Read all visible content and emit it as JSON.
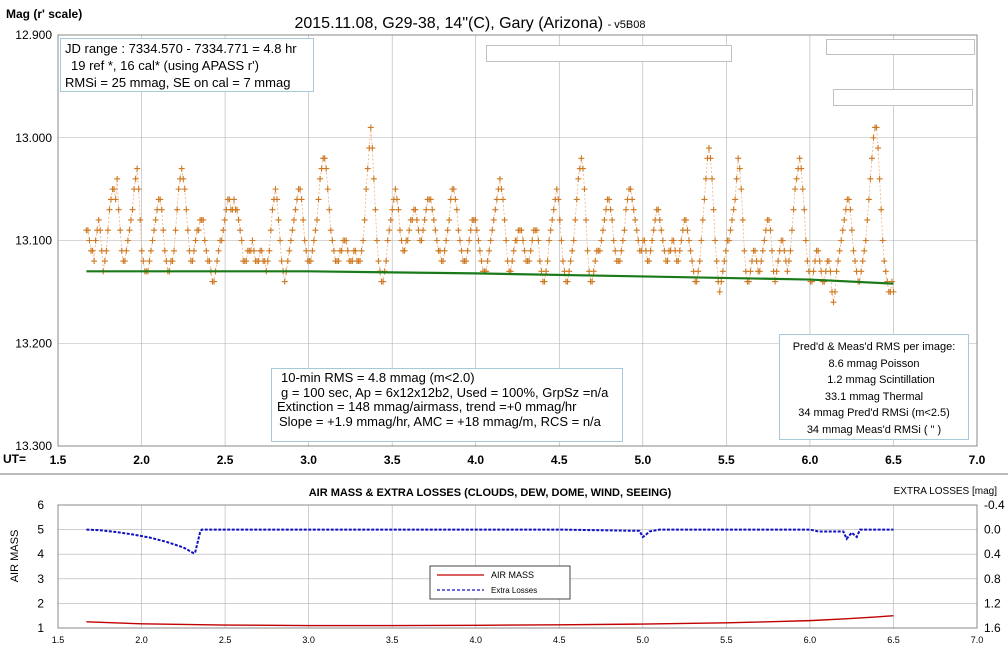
{
  "top_chart": {
    "title_main": "2015.11.08, G29-38, 14\"(C), Gary (Arizona)",
    "title_suffix": "- v5B08",
    "ylabel": "Mag (r' scale)",
    "xlabel": "UT=",
    "ytick_labels": [
      "12.900",
      "13.000",
      "13.100",
      "13.200",
      "13.300"
    ],
    "xtick_labels": [
      "1.5",
      "2.0",
      "2.5",
      "3.0",
      "3.5",
      "4.0",
      "4.5",
      "5.0",
      "5.5",
      "6.0",
      "6.5",
      "7.0"
    ],
    "info_box": {
      "line1": "JD range : 7334.570 - 7334.771 = 4.8 hr",
      "line2": "19 ref *, 16 cal* (using APASS r')",
      "line3": "RMSi = 25 mmag, SE on cal = 7 mmag"
    },
    "stats_box": {
      "line1": "10-min RMS = 4.8 mmag (m<2.0)",
      "line2": "g = 100 sec, Ap = 6x12x12b2, Used = 100%, GrpSz =n/a",
      "line3": "Extinction = 148 mmag/airmass, trend =+0 mmag/hr",
      "line4": "Slope = +1.9 mmag/hr, AMC = +18 mmag/m, RCS = n/a"
    },
    "rms_box": {
      "title": "Pred'd & Meas'd RMS per image:",
      "line1": "8.6 mmag Poisson",
      "line2": "1.2 mmag Scintillation",
      "line3": "33.1 mmag Thermal",
      "line4": "34 mmag Pred'd  RMSi (m<2.5)",
      "line5": "34 mmag Meas'd RMSi (     \"     )"
    }
  },
  "bottom_chart": {
    "title": "AIR MASS & EXTRA LOSSES (CLOUDS, DEW, DOME, WIND, SEEING)",
    "ylabel_left": "AIR MASS",
    "ylabel_right": "EXTRA LOSSES [mag]",
    "left_tick_labels": [
      "1",
      "2",
      "3",
      "4",
      "5",
      "6"
    ],
    "right_tick_labels": [
      "1.6",
      "1.2",
      "0.8",
      "0.4",
      "0.0",
      "-0.4"
    ],
    "xtick_labels": [
      "1.5",
      "2.0",
      "2.5",
      "3.0",
      "3.5",
      "4.0",
      "4.5",
      "5.0",
      "5.5",
      "6.0",
      "6.5",
      "7.0"
    ],
    "legend": {
      "airmass": "AIR MASS",
      "losses": "Extra Losses"
    }
  },
  "colors": {
    "data_points": "#d07820",
    "trend": "#1a7a1a",
    "airmass": "#c00000",
    "losses": "#1010c0",
    "grid": "#b0b0b0"
  },
  "chart_data": [
    {
      "type": "scatter",
      "title": "2015.11.08, G29-38, 14\"(C), Gary (Arizona) - v5B08",
      "xlabel": "UT=",
      "ylabel": "Mag (r' scale)",
      "xlim": [
        1.5,
        7.0
      ],
      "ylim": [
        13.3,
        12.9
      ],
      "y_inverted": true,
      "grid": true,
      "x_start": 1.67,
      "x_end": 6.5,
      "magnitudes": [
        13.09,
        13.09,
        13.1,
        13.11,
        13.11,
        13.12,
        13.1,
        13.09,
        13.08,
        13.09,
        13.11,
        13.13,
        13.12,
        13.11,
        13.09,
        13.07,
        13.06,
        13.05,
        13.05,
        13.06,
        13.04,
        13.07,
        13.09,
        13.11,
        13.12,
        13.12,
        13.11,
        13.1,
        13.09,
        13.08,
        13.07,
        13.05,
        13.04,
        13.03,
        13.05,
        13.08,
        13.11,
        13.12,
        13.13,
        13.13,
        13.13,
        13.12,
        13.11,
        13.1,
        13.09,
        13.08,
        13.07,
        13.06,
        13.06,
        13.07,
        13.09,
        13.11,
        13.12,
        13.13,
        13.13,
        13.12,
        13.12,
        13.11,
        13.09,
        13.07,
        13.05,
        13.04,
        13.03,
        13.04,
        13.05,
        13.07,
        13.09,
        13.11,
        13.12,
        13.12,
        13.11,
        13.1,
        13.09,
        13.09,
        13.08,
        13.08,
        13.08,
        13.1,
        13.11,
        13.12,
        13.12,
        13.13,
        13.14,
        13.14,
        13.13,
        13.12,
        13.11,
        13.1,
        13.1,
        13.09,
        13.08,
        13.07,
        13.06,
        13.06,
        13.07,
        13.07,
        13.06,
        13.07,
        13.07,
        13.08,
        13.09,
        13.1,
        13.12,
        13.12,
        13.12,
        13.11,
        13.11,
        13.11,
        13.1,
        13.11,
        13.12,
        13.12,
        13.12,
        13.11,
        13.11,
        13.12,
        13.12,
        13.13,
        13.12,
        13.11,
        13.09,
        13.07,
        13.06,
        13.05,
        13.06,
        13.08,
        13.1,
        13.12,
        13.13,
        13.14,
        13.13,
        13.12,
        13.11,
        13.1,
        13.09,
        13.08,
        13.07,
        13.06,
        13.05,
        13.05,
        13.06,
        13.08,
        13.1,
        13.11,
        13.12,
        13.12,
        13.12,
        13.11,
        13.1,
        13.09,
        13.08,
        13.06,
        13.04,
        13.03,
        13.02,
        13.02,
        13.03,
        13.05,
        13.07,
        13.09,
        13.1,
        13.11,
        13.12,
        13.12,
        13.12,
        13.11,
        13.11,
        13.1,
        13.1,
        13.1,
        13.11,
        13.12,
        13.12,
        13.12,
        13.11,
        13.11,
        13.12,
        13.12,
        13.12,
        13.11,
        13.1,
        13.08,
        13.05,
        13.03,
        13.01,
        12.99,
        13.01,
        13.04,
        13.07,
        13.1,
        13.12,
        13.13,
        13.14,
        13.14,
        13.13,
        13.12,
        13.1,
        13.09,
        13.08,
        13.07,
        13.06,
        13.05,
        13.06,
        13.07,
        13.09,
        13.1,
        13.11,
        13.11,
        13.1,
        13.1,
        13.09,
        13.08,
        13.08,
        13.07,
        13.07,
        13.08,
        13.09,
        13.1,
        13.1,
        13.09,
        13.08,
        13.07,
        13.06,
        13.06,
        13.06,
        13.07,
        13.08,
        13.09,
        13.1,
        13.11,
        13.11,
        13.12,
        13.12,
        13.11,
        13.1,
        13.09,
        13.08,
        13.06,
        13.05,
        13.05,
        13.06,
        13.07,
        13.09,
        13.1,
        13.11,
        13.12,
        13.12,
        13.12,
        13.11,
        13.1,
        13.09,
        13.08,
        13.08,
        13.08,
        13.09,
        13.1,
        13.11,
        13.12,
        13.13,
        13.13,
        13.13,
        13.12,
        13.11,
        13.1,
        13.09,
        13.08,
        13.07,
        13.06,
        13.05,
        13.04,
        13.05,
        13.06,
        13.08,
        13.1,
        13.12,
        13.13,
        13.13,
        13.12,
        13.11,
        13.1,
        13.1,
        13.09,
        13.09,
        13.09,
        13.1,
        13.11,
        13.12,
        13.12,
        13.12,
        13.11,
        13.1,
        13.09,
        13.09,
        13.09,
        13.1,
        13.12,
        13.13,
        13.14,
        13.14,
        13.13,
        13.12,
        13.1,
        13.09,
        13.08,
        13.07,
        13.06,
        13.05,
        13.06,
        13.08,
        13.1,
        13.12,
        13.13,
        13.14,
        13.14,
        13.13,
        13.12,
        13.11,
        13.1,
        13.08,
        13.06,
        13.04,
        13.03,
        13.02,
        13.03,
        13.05,
        13.08,
        13.11,
        13.13,
        13.14,
        13.14,
        13.13,
        13.12,
        13.11,
        13.11,
        13.11,
        13.1,
        13.09,
        13.08,
        13.07,
        13.06,
        13.06,
        13.07,
        13.08,
        13.1,
        13.11,
        13.12,
        13.12,
        13.12,
        13.11,
        13.1,
        13.09,
        13.07,
        13.06,
        13.05,
        13.05,
        13.06,
        13.07,
        13.08,
        13.09,
        13.1,
        13.11,
        13.11,
        13.1,
        13.1,
        13.11,
        13.12,
        13.12,
        13.11,
        13.1,
        13.09,
        13.08,
        13.07,
        13.07,
        13.08,
        13.09,
        13.1,
        13.11,
        13.12,
        13.12,
        13.11,
        13.11,
        13.1,
        13.1,
        13.11,
        13.12,
        13.12,
        13.11,
        13.1,
        13.09,
        13.08,
        13.08,
        13.09,
        13.1,
        13.11,
        13.12,
        13.13,
        13.14,
        13.14,
        13.13,
        13.12,
        13.1,
        13.08,
        13.06,
        13.04,
        13.02,
        13.01,
        13.02,
        13.04,
        13.07,
        13.1,
        13.12,
        13.14,
        13.15,
        13.14,
        13.13,
        13.12,
        13.11,
        13.1,
        13.1,
        13.09,
        13.08,
        13.07,
        13.06,
        13.04,
        13.02,
        13.03,
        13.05,
        13.08,
        13.11,
        13.13,
        13.14,
        13.14,
        13.13,
        13.12,
        13.11,
        13.11,
        13.12,
        13.13,
        13.13,
        13.12,
        13.11,
        13.1,
        13.09,
        13.08,
        13.08,
        13.09,
        13.11,
        13.13,
        13.14,
        13.13,
        13.12,
        13.11,
        13.1,
        13.1,
        13.11,
        13.12,
        13.13,
        13.12,
        13.11,
        13.09,
        13.07,
        13.05,
        13.04,
        13.03,
        13.02,
        13.03,
        13.05,
        13.07,
        13.1,
        13.12,
        13.13,
        13.14,
        13.14,
        13.13,
        13.12,
        13.11,
        13.11,
        13.12,
        13.13,
        13.14,
        13.14,
        13.13,
        13.12,
        13.12,
        13.13,
        13.15,
        13.16,
        13.15,
        13.13,
        13.12,
        13.11,
        13.1,
        13.09,
        13.08,
        13.07,
        13.06,
        13.06,
        13.07,
        13.09,
        13.11,
        13.12,
        13.13,
        13.14,
        13.14,
        13.13,
        13.12,
        13.11,
        13.1,
        13.08,
        13.06,
        13.04,
        13.02,
        13.0,
        12.99,
        12.99,
        13.01,
        13.04,
        13.07,
        13.1,
        13.12,
        13.13,
        13.14,
        13.15,
        13.15,
        13.14,
        13.15
      ],
      "trend": {
        "x": [
          1.67,
          3.0,
          4.0,
          5.0,
          6.0,
          6.5
        ],
        "y": [
          13.13,
          13.13,
          13.132,
          13.135,
          13.138,
          13.142
        ]
      }
    },
    {
      "type": "line",
      "title": "AIR MASS & EXTRA LOSSES (CLOUDS, DEW, DOME, WIND, SEEING)",
      "xlabel": "",
      "ylabel": "AIR MASS",
      "y2label": "EXTRA LOSSES [mag]",
      "xlim": [
        1.5,
        7.0
      ],
      "ylim": [
        1,
        6
      ],
      "y2lim": [
        1.6,
        -0.4
      ],
      "grid": true,
      "legend": "center",
      "series": [
        {
          "name": "AIR MASS",
          "axis": "left",
          "x": [
            1.67,
            2.0,
            2.5,
            3.0,
            3.5,
            4.0,
            4.5,
            5.0,
            5.5,
            5.8,
            6.0,
            6.2,
            6.4,
            6.5
          ],
          "y": [
            1.25,
            1.17,
            1.12,
            1.1,
            1.1,
            1.11,
            1.13,
            1.16,
            1.21,
            1.26,
            1.3,
            1.37,
            1.45,
            1.5
          ]
        },
        {
          "name": "Extra Losses",
          "axis": "right",
          "x": [
            1.67,
            1.75,
            1.85,
            1.95,
            2.05,
            2.15,
            2.25,
            2.31,
            2.32,
            2.35,
            2.36,
            2.5,
            3.0,
            3.5,
            4.0,
            4.5,
            4.98,
            5.0,
            5.02,
            5.04,
            5.1,
            5.5,
            5.9,
            6.0,
            6.05,
            6.2,
            6.22,
            6.25,
            6.28,
            6.3,
            6.4,
            6.5
          ],
          "y": [
            0.0,
            0.01,
            0.04,
            0.08,
            0.13,
            0.2,
            0.29,
            0.38,
            0.38,
            0.05,
            0.0,
            0.0,
            0.0,
            0.0,
            0.0,
            0.0,
            0.02,
            0.12,
            0.08,
            0.03,
            0.0,
            0.0,
            0.0,
            0.0,
            0.03,
            0.03,
            0.15,
            0.05,
            0.12,
            0.0,
            0.0,
            0.0
          ]
        }
      ]
    }
  ]
}
